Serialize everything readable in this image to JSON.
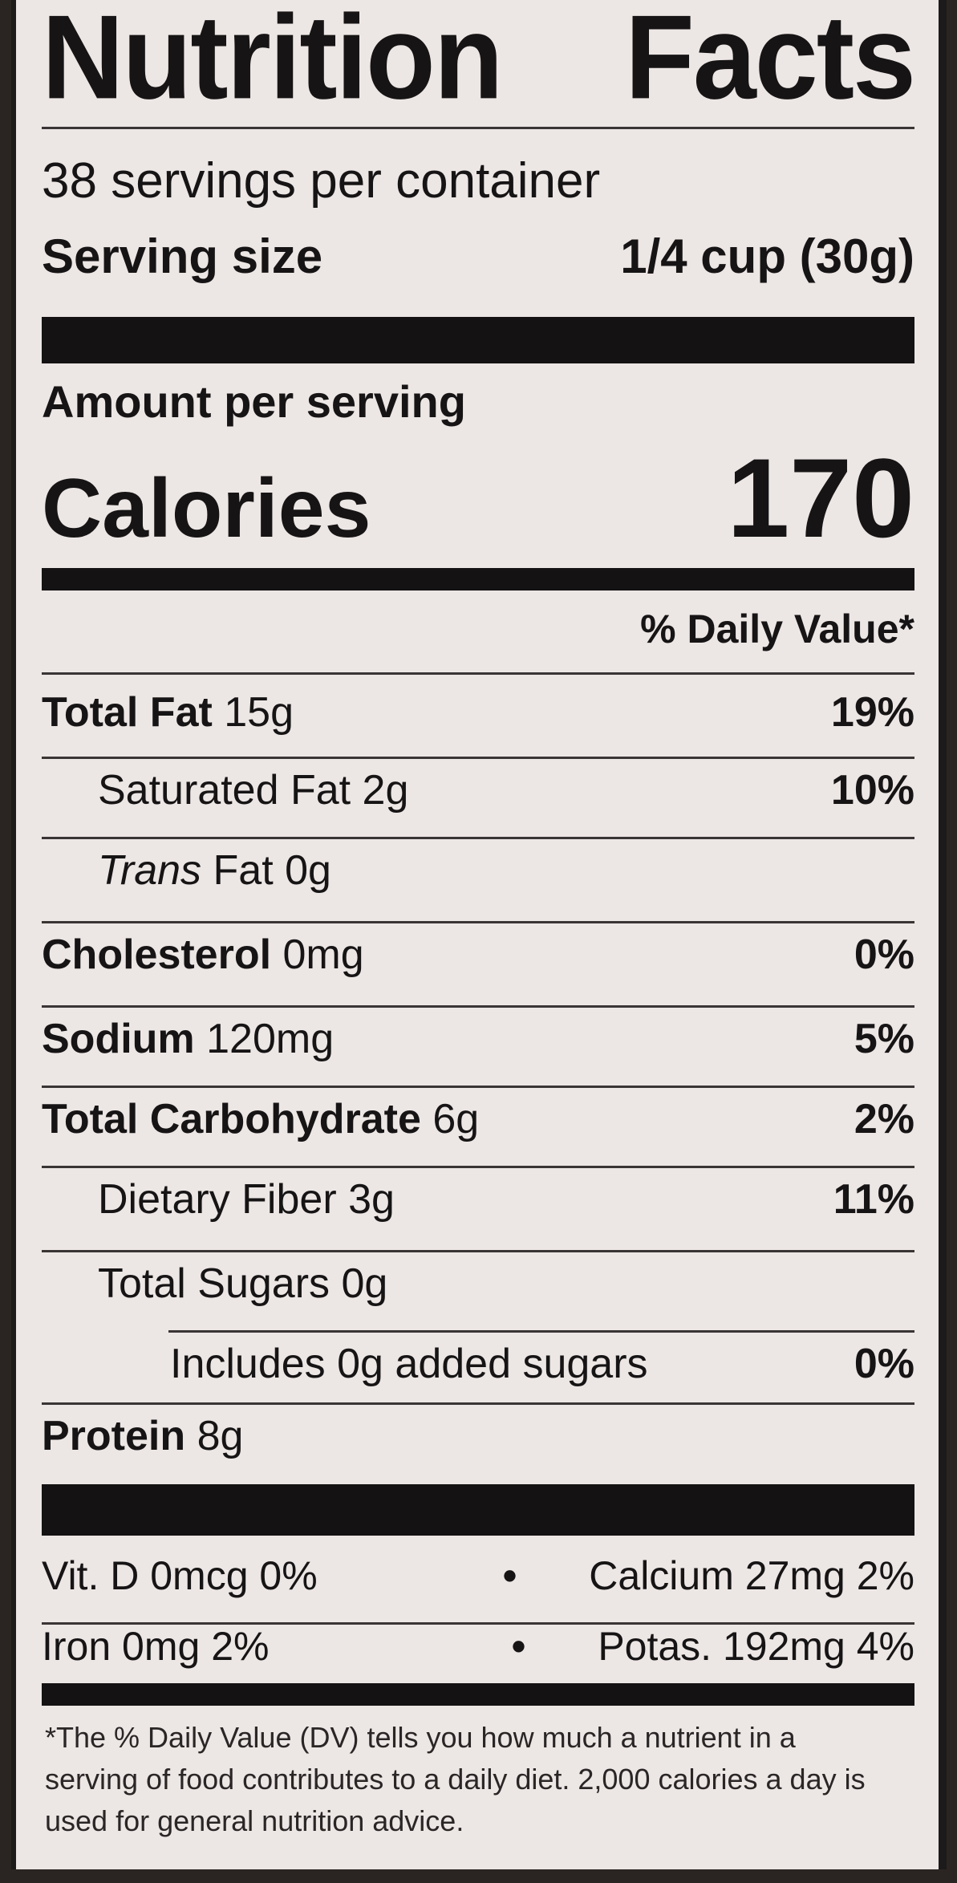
{
  "title": "Nutrition Facts",
  "servings": "38 servings per container",
  "serving_size": {
    "label": "Serving size",
    "value": "1/4 cup (30g)"
  },
  "amount_per_serving": "Amount per serving",
  "calories": {
    "label": "Calories",
    "value": 170
  },
  "dv_header": "% Daily Value*",
  "nutrients": [
    {
      "name": "Total Fat",
      "amount": "15g",
      "dv": "19%"
    },
    {
      "name": "Saturated Fat",
      "amount": "2g",
      "dv": "10%"
    },
    {
      "name_italic": "Trans",
      "name": "Fat",
      "amount": "0g"
    },
    {
      "name": "Cholesterol",
      "amount": "0mg",
      "dv": "0%"
    },
    {
      "name": "Sodium",
      "amount": "120mg",
      "dv": "5%"
    },
    {
      "name": "Total Carbohydrate",
      "amount": "6g",
      "dv": "2%"
    },
    {
      "name": "Dietary Fiber",
      "amount": "3g",
      "dv": "11%"
    },
    {
      "name": "Total Sugars",
      "amount": "0g"
    },
    {
      "name": "Includes 0g added sugars",
      "dv": "0%"
    },
    {
      "name": "Protein",
      "amount": "8g"
    }
  ],
  "vitamins": [
    [
      "Vit. D 0mcg 0%",
      "Calcium 27mg 2%"
    ],
    [
      "Iron 0mg 2%",
      "Potas. 192mg 4%"
    ]
  ],
  "footnote": "*The % Daily Value (DV) tells you how much a nutrient in a serving of food contributes to a daily diet. 2,000 calories a day is used for general nutrition advice."
}
